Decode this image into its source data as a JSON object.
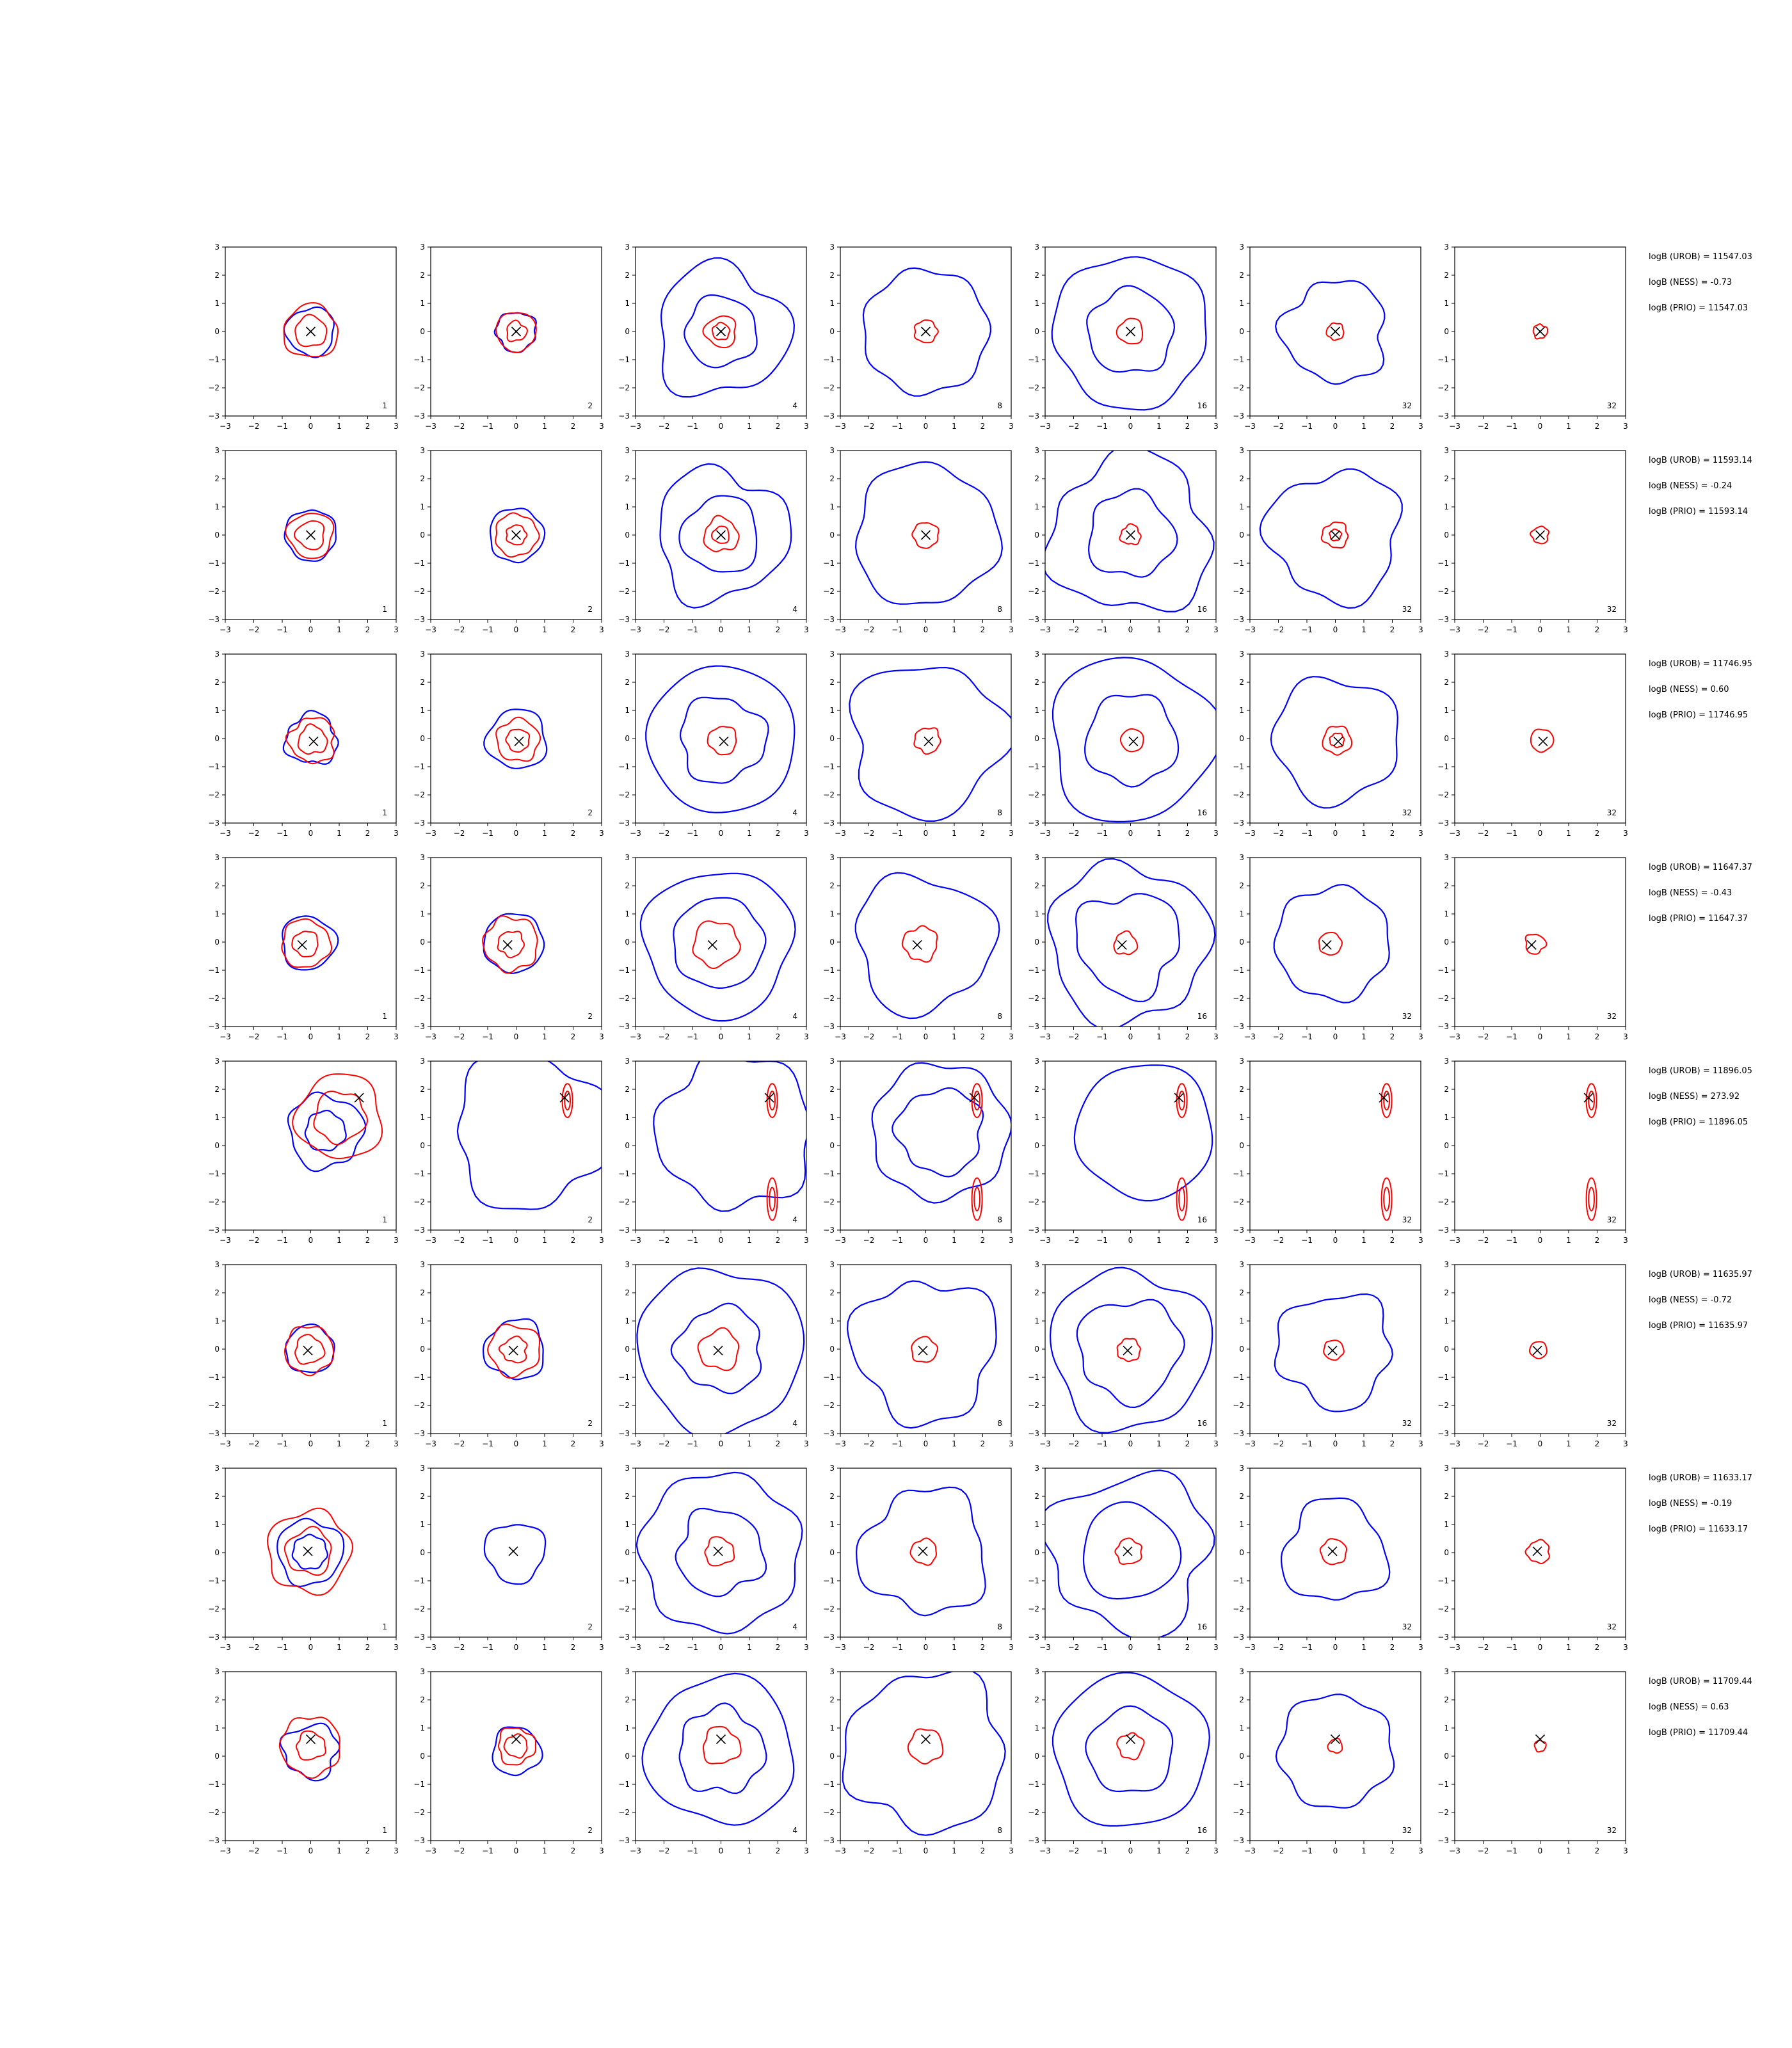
{
  "chart_data": {
    "type": "contour-grid",
    "xlim": [
      -3,
      3
    ],
    "ylim": [
      -3,
      3
    ],
    "ticks": [
      "−3",
      "−2",
      "−1",
      "0",
      "1",
      "2",
      "3"
    ],
    "series_colors": {
      "blue": "#0000ff",
      "red": "#ff0000",
      "marker": "#000000"
    },
    "column_labels": [
      "1",
      "2",
      "4",
      "8",
      "16",
      "32",
      "32"
    ],
    "rows": [
      {
        "marker": [
          0.0,
          0.0
        ],
        "blue_radii": [
          [
            0.85
          ],
          [
            0.7
          ],
          [
            1.25,
            2.3
          ],
          [
            2.2
          ],
          [
            1.5,
            2.7
          ],
          [
            1.8
          ],
          []
        ],
        "red_radii": [
          [
            0.95,
            0.55
          ],
          [
            0.7,
            0.35
          ],
          [
            0.55,
            0.3
          ],
          [
            0.4
          ],
          [
            0.45
          ],
          [
            0.3
          ],
          [
            0.25
          ]
        ],
        "stats": [
          "logB (UROB) = 11547.03",
          "logB (NESS) = -0.73",
          "logB (PRIO) = 11547.03"
        ]
      },
      {
        "marker": [
          0.0,
          0.0
        ],
        "blue_radii": [
          [
            0.9
          ],
          [
            0.95
          ],
          [
            1.35,
            2.3
          ],
          [
            2.5
          ],
          [
            1.5,
            2.8
          ],
          [
            2.3
          ],
          []
        ],
        "red_radii": [
          [
            0.8,
            0.5
          ],
          [
            0.75,
            0.35
          ],
          [
            0.6,
            0.3
          ],
          [
            0.45
          ],
          [
            0.35
          ],
          [
            0.45,
            0.2
          ],
          [
            0.3
          ]
        ],
        "stats": [
          "logB (UROB) = 11593.14",
          "logB (NESS) = -0.24",
          "logB (PRIO) = 11593.14"
        ]
      },
      {
        "marker": [
          0.1,
          -0.1
        ],
        "blue_radii": [
          [
            0.9
          ],
          [
            1.05
          ],
          [
            1.5,
            2.6
          ],
          [
            2.7
          ],
          [
            1.6,
            2.9
          ],
          [
            2.2
          ],
          []
        ],
        "red_radii": [
          [
            0.8,
            0.5
          ],
          [
            0.75,
            0.4
          ],
          [
            0.5
          ],
          [
            0.45
          ],
          [
            0.4
          ],
          [
            0.5,
            0.25
          ],
          [
            0.4
          ]
        ],
        "stats": [
          "logB (UROB) = 11746.95",
          "logB (NESS) = 0.60",
          "logB (PRIO) = 11746.95"
        ]
      },
      {
        "marker": [
          -0.3,
          -0.1
        ],
        "blue_radii": [
          [
            0.95
          ],
          [
            1.05
          ],
          [
            1.6,
            2.6
          ],
          [
            2.4
          ],
          [
            1.8,
            2.8
          ],
          [
            2.0
          ],
          []
        ],
        "red_radii": [
          [
            0.85,
            0.45
          ],
          [
            0.95,
            0.45
          ],
          [
            0.8
          ],
          [
            0.6
          ],
          [
            0.4
          ],
          [
            0.4
          ],
          [
            0.35
          ]
        ],
        "stats": [
          "logB (UROB) = 11647.37",
          "logB (NESS) = -0.43",
          "logB (PRIO) = 11647.37"
        ]
      },
      {
        "marker": [
          1.7,
          1.7
        ],
        "blue_radii": [
          [
            1.3,
            0.7
          ],
          [
            2.7
          ],
          [
            2.7
          ],
          [
            1.5,
            2.4
          ],
          [
            2.4
          ],
          [],
          []
        ],
        "red_radii": [
          [
            1.5,
            0.9
          ],
          [],
          [],
          [],
          [],
          [],
          []
        ],
        "stats": [
          "logB (UROB) = 11896.05",
          "logB (NESS) = 273.92",
          "logB (PRIO) = 11896.05"
        ]
      },
      {
        "marker": [
          -0.1,
          -0.05
        ],
        "blue_radii": [
          [
            0.85
          ],
          [
            1.05
          ],
          [
            1.5,
            2.9
          ],
          [
            2.5
          ],
          [
            1.8,
            2.8
          ],
          [
            2.0
          ],
          []
        ],
        "red_radii": [
          [
            0.85,
            0.5
          ],
          [
            0.9,
            0.45
          ],
          [
            0.7
          ],
          [
            0.45
          ],
          [
            0.4
          ],
          [
            0.35
          ],
          [
            0.3
          ]
        ],
        "stats": [
          "logB (UROB) = 11635.97",
          "logB (NESS) = -0.72",
          "logB (PRIO) = 11635.97"
        ]
      },
      {
        "marker": [
          -0.1,
          0.05
        ],
        "blue_radii": [
          [
            1.15,
            0.6
          ],
          [
            1.05
          ],
          [
            1.5,
            2.8
          ],
          [
            2.2
          ],
          [
            1.7,
            2.8
          ],
          [
            1.8
          ],
          []
        ],
        "red_radii": [
          [
            1.45,
            0.8
          ],
          [],
          [
            0.5
          ],
          [
            0.45
          ],
          [
            0.45
          ],
          [
            0.45
          ],
          [
            0.4
          ]
        ],
        "stats": [
          "logB (UROB) = 11633.17",
          "logB (NESS) = -0.19",
          "logB (PRIO) = 11633.17"
        ]
      },
      {
        "marker": [
          0.0,
          0.6
        ],
        "blue_radii": [
          [
            0.95
          ],
          [
            0.85
          ],
          [
            1.5,
            2.6
          ],
          [
            2.8
          ],
          [
            1.5,
            2.7
          ],
          [
            2.0
          ],
          []
        ],
        "red_radii": [
          [
            1.05,
            0.5
          ],
          [
            0.65,
            0.4
          ],
          [
            0.65
          ],
          [
            0.6
          ],
          [
            0.45
          ],
          [
            0.25
          ],
          [
            0.2
          ]
        ],
        "stats": [
          "logB (UROB) = 11709.44",
          "logB (NESS) = 0.63",
          "logB (PRIO) = 11709.44"
        ]
      }
    ]
  }
}
